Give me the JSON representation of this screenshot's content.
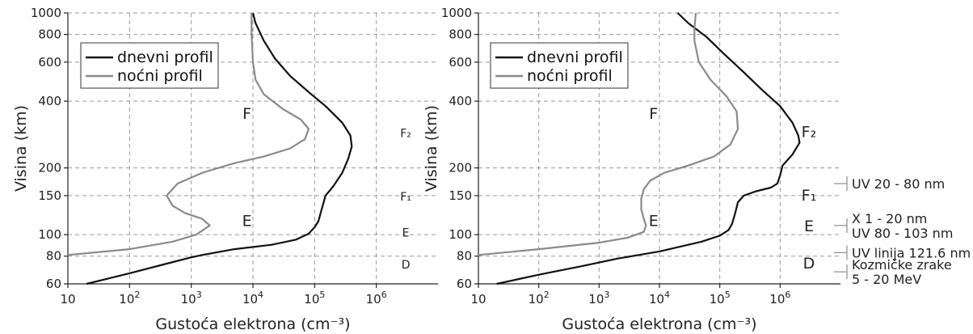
{
  "chart_data": [
    {
      "type": "line",
      "panel": "left",
      "xlabel": "Gustoća elektrona (cm⁻³)",
      "ylabel": "Visina (km)",
      "x_scale": "log",
      "y_scale": "log",
      "xlim": [
        10,
        10000000
      ],
      "ylim": [
        60,
        1000
      ],
      "x_ticks": [
        {
          "value": 10,
          "base": "10",
          "exp": ""
        },
        {
          "value": 100,
          "base": "10",
          "exp": "2"
        },
        {
          "value": 1000,
          "base": "10",
          "exp": "3"
        },
        {
          "value": 10000,
          "base": "10",
          "exp": "4"
        },
        {
          "value": 100000,
          "base": "10",
          "exp": "5"
        },
        {
          "value": 1000000,
          "base": "10",
          "exp": "6"
        }
      ],
      "y_ticks": [
        60,
        80,
        100,
        150,
        200,
        400,
        600,
        800,
        1000
      ],
      "grid": true,
      "legend_position": "top-left",
      "series": [
        {
          "name": "dnevni profil",
          "color": "#111111",
          "points": [
            [
              20,
              60
            ],
            [
              100,
              67
            ],
            [
              400,
              74
            ],
            [
              1000,
              79
            ],
            [
              1500,
              81
            ],
            [
              5000,
              86
            ],
            [
              20000,
              90
            ],
            [
              50000,
              95
            ],
            [
              80000,
              101
            ],
            [
              100000,
              108
            ],
            [
              115000,
              115
            ],
            [
              130000,
              130
            ],
            [
              150000,
              150
            ],
            [
              200000,
              165
            ],
            [
              280000,
              190
            ],
            [
              350000,
              220
            ],
            [
              400000,
              250
            ],
            [
              380000,
              280
            ],
            [
              280000,
              320
            ],
            [
              150000,
              380
            ],
            [
              80000,
              440
            ],
            [
              40000,
              520
            ],
            [
              23000,
              620
            ],
            [
              15000,
              750
            ],
            [
              11000,
              900
            ],
            [
              10000,
              1000
            ]
          ]
        },
        {
          "name": "noćni profil",
          "color": "#8a8a8a",
          "points": [
            [
              10,
              81
            ],
            [
              100,
              86
            ],
            [
              500,
              93
            ],
            [
              1200,
              100
            ],
            [
              2000,
              110
            ],
            [
              1500,
              118
            ],
            [
              800,
              125
            ],
            [
              500,
              135
            ],
            [
              400,
              150
            ],
            [
              600,
              170
            ],
            [
              1500,
              190
            ],
            [
              5000,
              210
            ],
            [
              15000,
              225
            ],
            [
              40000,
              245
            ],
            [
              70000,
              270
            ],
            [
              80000,
              300
            ],
            [
              60000,
              330
            ],
            [
              30000,
              370
            ],
            [
              15000,
              430
            ],
            [
              11000,
              500
            ],
            [
              10000,
              600
            ],
            [
              9500,
              800
            ],
            [
              9500,
              1000
            ]
          ]
        }
      ],
      "layer_labels": [
        {
          "text": "F",
          "x": 8000,
          "y": 350,
          "size": "big"
        },
        {
          "text": "E",
          "x": 8000,
          "y": 115,
          "size": "big"
        },
        {
          "text": "F₂",
          "x": 3000000,
          "y": 290,
          "size": "small"
        },
        {
          "text": "F₁",
          "x": 3000000,
          "y": 150,
          "size": "small"
        },
        {
          "text": "E",
          "x": 3000000,
          "y": 103,
          "size": "small"
        },
        {
          "text": "D",
          "x": 3000000,
          "y": 74,
          "size": "small"
        }
      ]
    },
    {
      "type": "line",
      "panel": "right",
      "xlabel": "Gustoća elektrona (cm⁻³)",
      "ylabel": "Visina (km)",
      "x_scale": "log",
      "y_scale": "log",
      "xlim": [
        10,
        10000000
      ],
      "ylim": [
        60,
        1000
      ],
      "x_ticks": [
        {
          "value": 10,
          "base": "10",
          "exp": ""
        },
        {
          "value": 100,
          "base": "10",
          "exp": "2"
        },
        {
          "value": 1000,
          "base": "10",
          "exp": "3"
        },
        {
          "value": 10000,
          "base": "10",
          "exp": "4"
        },
        {
          "value": 100000,
          "base": "10",
          "exp": "5"
        },
        {
          "value": 1000000,
          "base": "10",
          "exp": "6"
        }
      ],
      "y_ticks": [
        60,
        80,
        100,
        150,
        200,
        400,
        600,
        800,
        1000
      ],
      "grid": true,
      "legend_position": "top-left",
      "series": [
        {
          "name": "dnevni profil",
          "color": "#111111",
          "points": [
            [
              20,
              60
            ],
            [
              100,
              66
            ],
            [
              500,
              72
            ],
            [
              2000,
              78
            ],
            [
              10000,
              84
            ],
            [
              50000,
              93
            ],
            [
              100000,
              99
            ],
            [
              140000,
              105
            ],
            [
              160000,
              112
            ],
            [
              180000,
              125
            ],
            [
              200000,
              140
            ],
            [
              250000,
              150
            ],
            [
              400000,
              157
            ],
            [
              700000,
              163
            ],
            [
              900000,
              170
            ],
            [
              1000000,
              185
            ],
            [
              1100000,
              205
            ],
            [
              1600000,
              230
            ],
            [
              2100000,
              260
            ],
            [
              2000000,
              280
            ],
            [
              1600000,
              320
            ],
            [
              1000000,
              380
            ],
            [
              500000,
              450
            ],
            [
              250000,
              540
            ],
            [
              120000,
              650
            ],
            [
              60000,
              780
            ],
            [
              30000,
              900
            ],
            [
              20000,
              1000
            ]
          ]
        },
        {
          "name": "noćni profil",
          "color": "#8a8a8a",
          "points": [
            [
              10,
              81
            ],
            [
              100,
              86
            ],
            [
              1000,
              92
            ],
            [
              3000,
              97
            ],
            [
              5500,
              103
            ],
            [
              6000,
              110
            ],
            [
              5500,
              118
            ],
            [
              5000,
              130
            ],
            [
              5000,
              145
            ],
            [
              5500,
              160
            ],
            [
              7000,
              175
            ],
            [
              12000,
              190
            ],
            [
              30000,
              205
            ],
            [
              80000,
              225
            ],
            [
              150000,
              255
            ],
            [
              200000,
              300
            ],
            [
              190000,
              360
            ],
            [
              130000,
              420
            ],
            [
              70000,
              500
            ],
            [
              45000,
              600
            ],
            [
              38000,
              750
            ],
            [
              38000,
              850
            ],
            [
              40000,
              1000
            ]
          ]
        }
      ],
      "layer_labels": [
        {
          "text": "F",
          "x": 8000,
          "y": 350,
          "size": "big"
        },
        {
          "text": "E",
          "x": 8000,
          "y": 115,
          "size": "big"
        },
        {
          "text": "F₂",
          "x": 3000000,
          "y": 290,
          "size": "big"
        },
        {
          "text": "F₁",
          "x": 3000000,
          "y": 150,
          "size": "big"
        },
        {
          "text": "E",
          "x": 3000000,
          "y": 109,
          "size": "big"
        },
        {
          "text": "D",
          "x": 3000000,
          "y": 74,
          "size": "big"
        }
      ],
      "annotations": [
        {
          "lines": [
            "UV 20 - 80 nm"
          ],
          "y": 170
        },
        {
          "lines": [
            "X 1 - 20 nm",
            "UV 80 - 103 nm"
          ],
          "y": 110
        },
        {
          "lines": [
            "UV linija 121.6 nm"
          ],
          "y": 83
        },
        {
          "lines": [
            "Kozmičke zrake",
            " 5 - 20 MeV"
          ],
          "y": 68
        }
      ]
    }
  ]
}
